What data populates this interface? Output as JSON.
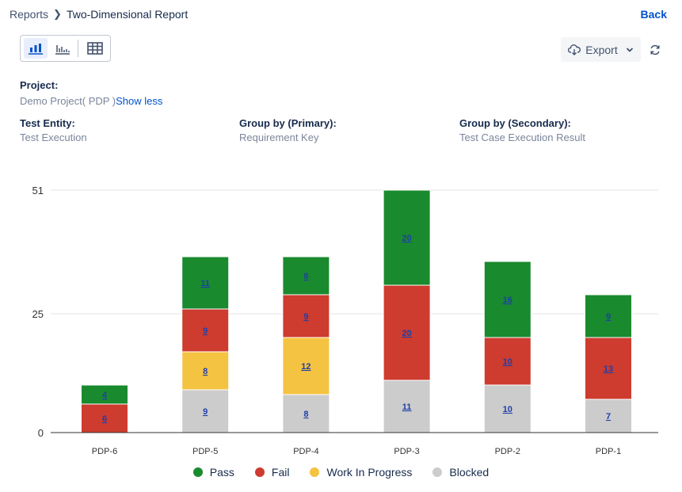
{
  "breadcrumb": {
    "parent": "Reports",
    "current": "Two-Dimensional Report"
  },
  "back_label": "Back",
  "toolbar": {
    "export_label": "Export"
  },
  "project": {
    "label": "Project:",
    "value": "Demo Project( PDP )",
    "toggle": "Show less"
  },
  "filters": [
    {
      "label": "Test Entity:",
      "value": "Test Execution"
    },
    {
      "label": "Group by (Primary):",
      "value": "Requirement Key"
    },
    {
      "label": "Group by (Secondary):",
      "value": "Test Case Execution Result"
    }
  ],
  "colors": {
    "accent": "#0052cc",
    "pass": "#1a8a2e",
    "fail": "#cd3c2f",
    "wip": "#f5c342",
    "blocked": "#cccccc"
  },
  "chart_data": {
    "type": "bar",
    "stacked": true,
    "categories": [
      "PDP-6",
      "PDP-5",
      "PDP-4",
      "PDP-3",
      "PDP-2",
      "PDP-1"
    ],
    "series": [
      {
        "name": "Blocked",
        "color": "#cccccc",
        "values": [
          0,
          9,
          8,
          11,
          10,
          7
        ]
      },
      {
        "name": "Work In Progress",
        "color": "#f5c342",
        "values": [
          0,
          8,
          12,
          0,
          0,
          0
        ]
      },
      {
        "name": "Fail",
        "color": "#cd3c2f",
        "values": [
          6,
          9,
          9,
          20,
          10,
          13
        ]
      },
      {
        "name": "Pass",
        "color": "#1a8a2e",
        "values": [
          4,
          11,
          8,
          20,
          16,
          9
        ]
      }
    ],
    "legend_order": [
      "Pass",
      "Fail",
      "Work In Progress",
      "Blocked"
    ],
    "yticks": [
      0,
      25,
      51
    ],
    "ylim": [
      0,
      51
    ],
    "grid": true,
    "legend_position": "bottom"
  }
}
